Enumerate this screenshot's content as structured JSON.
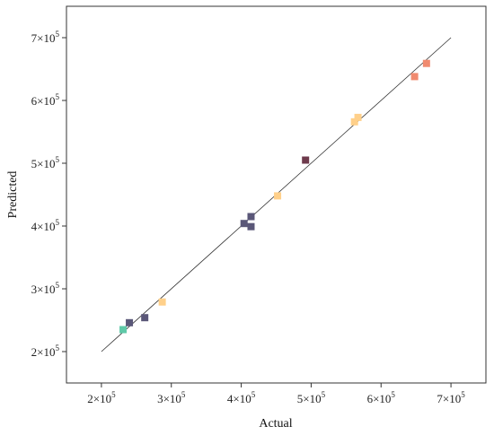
{
  "chart_data": {
    "type": "scatter",
    "title": "",
    "xlabel": "Actual",
    "ylabel": "Predicted",
    "xlim": [
      150000,
      750000
    ],
    "ylim": [
      150000,
      750000
    ],
    "x_ticks": [
      200000,
      300000,
      400000,
      500000,
      600000,
      700000
    ],
    "y_ticks": [
      200000,
      300000,
      400000,
      500000,
      600000,
      700000
    ],
    "x_tick_labels": [
      "2×10",
      "3×10",
      "4×10",
      "5×10",
      "6×10",
      "7×10"
    ],
    "y_tick_labels": [
      "2×10",
      "3×10",
      "4×10",
      "5×10",
      "6×10",
      "7×10"
    ],
    "tick_exponent": "5",
    "reference_line": {
      "from": [
        200000,
        200000
      ],
      "to": [
        700000,
        700000
      ]
    },
    "grid": false,
    "marker": "square",
    "points": [
      {
        "x": 231000,
        "y": 235000,
        "color": "#5fc9a8"
      },
      {
        "x": 240000,
        "y": 246000,
        "color": "#5a5778"
      },
      {
        "x": 262000,
        "y": 254000,
        "color": "#5a5778"
      },
      {
        "x": 287000,
        "y": 279000,
        "color": "#ffd08a"
      },
      {
        "x": 404000,
        "y": 404000,
        "color": "#5a5778"
      },
      {
        "x": 414000,
        "y": 415000,
        "color": "#5a5778"
      },
      {
        "x": 414000,
        "y": 399000,
        "color": "#5a5778"
      },
      {
        "x": 452000,
        "y": 448000,
        "color": "#ffd08a"
      },
      {
        "x": 492000,
        "y": 505000,
        "color": "#6e3a4c"
      },
      {
        "x": 562000,
        "y": 566000,
        "color": "#ffd08a"
      },
      {
        "x": 567000,
        "y": 573000,
        "color": "#ffd08a"
      },
      {
        "x": 648000,
        "y": 638000,
        "color": "#f08a6f"
      },
      {
        "x": 665000,
        "y": 659000,
        "color": "#f08a6f"
      }
    ]
  }
}
